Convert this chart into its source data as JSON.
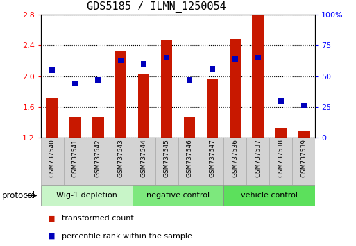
{
  "title": "GDS5185 / ILMN_1250054",
  "samples": [
    "GSM737540",
    "GSM737541",
    "GSM737542",
    "GSM737543",
    "GSM737544",
    "GSM737545",
    "GSM737546",
    "GSM737547",
    "GSM737536",
    "GSM737537",
    "GSM737538",
    "GSM737539"
  ],
  "transformed_count": [
    1.72,
    1.46,
    1.47,
    2.32,
    2.03,
    2.47,
    1.47,
    1.97,
    2.49,
    2.8,
    1.33,
    1.28
  ],
  "percentile_rank": [
    55,
    44,
    47,
    63,
    60,
    65,
    47,
    56,
    64,
    65,
    30,
    26
  ],
  "groups": [
    {
      "name": "Wig-1 depletion",
      "start": 0,
      "end": 4,
      "color": "#c8f5c8"
    },
    {
      "name": "negative control",
      "start": 4,
      "end": 8,
      "color": "#7de87d"
    },
    {
      "name": "vehicle control",
      "start": 8,
      "end": 12,
      "color": "#5ce05c"
    }
  ],
  "ylim_left": [
    1.2,
    2.8
  ],
  "ylim_right": [
    0,
    100
  ],
  "yticks_left": [
    1.2,
    1.6,
    2.0,
    2.4,
    2.8
  ],
  "yticks_right": [
    0,
    25,
    50,
    75,
    100
  ],
  "bar_color": "#c81800",
  "dot_color": "#0000bb",
  "bar_width": 0.5,
  "title_fontsize": 11,
  "tick_fontsize": 8,
  "legend_fontsize": 8,
  "protocol_label": "protocol",
  "legend_items": [
    {
      "label": "transformed count",
      "color": "#c81800"
    },
    {
      "label": "percentile rank within the sample",
      "color": "#0000bb"
    }
  ],
  "sample_box_color": "#d3d3d3",
  "sample_box_edge": "#aaaaaa",
  "dot_size": 28
}
